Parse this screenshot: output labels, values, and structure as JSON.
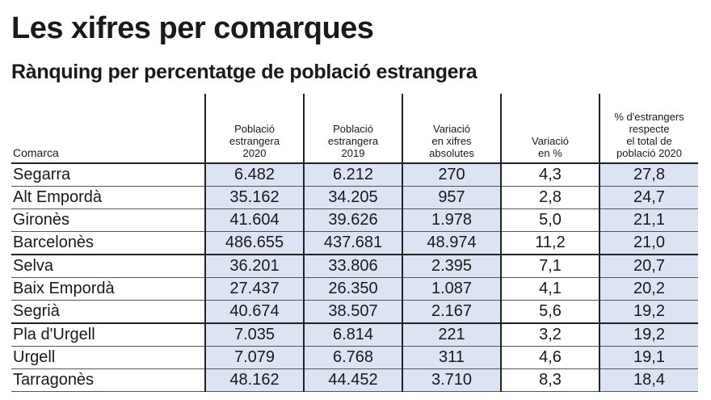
{
  "title": "Les xifres per comarques",
  "subtitle": "Rànquing per percentatge de població estrangera",
  "chart_data": {
    "type": "table",
    "columns": [
      "Comarca",
      "Població\nestrangera\n2020",
      "Població\nestrangera\n2019",
      "Variació\nen xifres\nabsolutes",
      "Variació\nen %",
      "% d'estrangers\nrespecte\nel total de\npoblació 2020"
    ],
    "rows": [
      [
        "Segarra",
        "6.482",
        "6.212",
        "270",
        "4,3",
        "27,8"
      ],
      [
        "Alt Empordà",
        "35.162",
        "34.205",
        "957",
        "2,8",
        "24,7"
      ],
      [
        "Gironès",
        "41.604",
        "39.626",
        "1.978",
        "5,0",
        "21,1"
      ],
      [
        "Barcelonès",
        "486.655",
        "437.681",
        "48.974",
        "11,2",
        "21,0"
      ],
      [
        "Selva",
        "36.201",
        "33.806",
        "2.395",
        "7,1",
        "20,7"
      ],
      [
        "Baix Empordà",
        "27.437",
        "26.350",
        "1.087",
        "4,1",
        "20,2"
      ],
      [
        "Segrià",
        "40.674",
        "38.507",
        "2.167",
        "5,6",
        "19,2"
      ],
      [
        "Pla d'Urgell",
        "7.035",
        "6.814",
        "221",
        "3,2",
        "19,2"
      ],
      [
        "Urgell",
        "7.079",
        "6.768",
        "311",
        "4,6",
        "19,1"
      ],
      [
        "Tarragonès",
        "48.162",
        "44.452",
        "3.710",
        "8,3",
        "18,4"
      ]
    ]
  },
  "colors": {
    "shaded_cell": "#dce3f2",
    "rule": "#222222"
  }
}
